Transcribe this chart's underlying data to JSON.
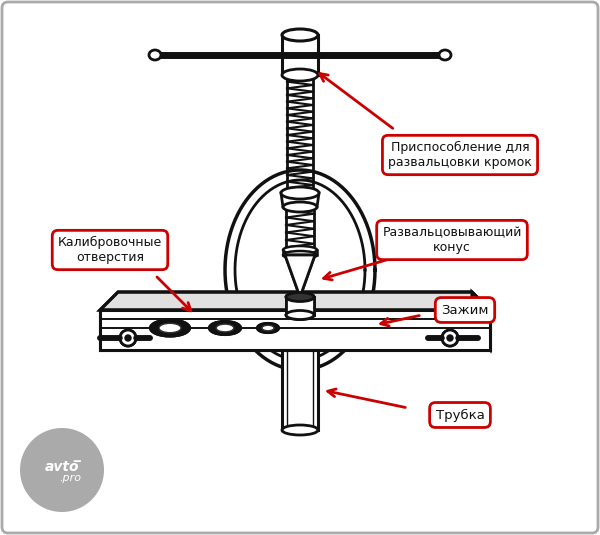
{
  "bg_color": "#f0f0f0",
  "line_color": "#111111",
  "label_border_color": "#cc0000",
  "label_text_color": "#111111",
  "arrow_color": "#cc0000",
  "labels": {
    "prisp": "Приспособление для\nразвальцовки кромок",
    "kalib": "Калибровочные\nотверстия",
    "konus": "Развальцовывающий\nконус",
    "zazhim": "Зажим",
    "trubka": "Трубка"
  }
}
